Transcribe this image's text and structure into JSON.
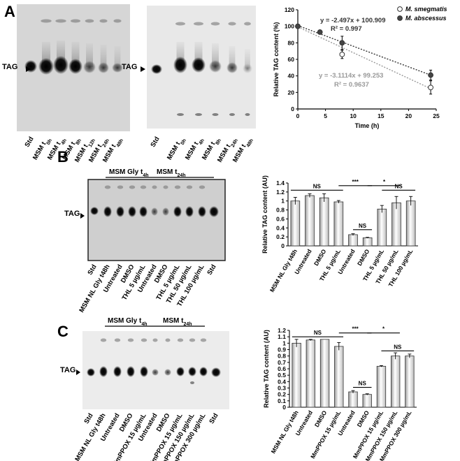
{
  "panels": {
    "A": "A",
    "B": "B",
    "C": "C"
  },
  "tag_label": "TAG",
  "sub": {
    "tgly4h": "4h",
    "tgly48h": "48h"
  },
  "panelA": {
    "tlc1": {
      "lanes": [
        {
          "main": "Std",
          "sub": ""
        },
        {
          "main": "MSM t",
          "sub": "0h"
        },
        {
          "main": "MSM t",
          "sub": "4h"
        },
        {
          "main": "MSM t",
          "sub": "8h"
        },
        {
          "main": "MSM t",
          "sub": "12h"
        },
        {
          "main": "MSM t",
          "sub": "24h"
        },
        {
          "main": "MSM t",
          "sub": "48h"
        }
      ]
    },
    "tlc2": {
      "lanes": [
        {
          "main": "Std",
          "sub": ""
        },
        {
          "main": "MSM t",
          "sub": "0h"
        },
        {
          "main": "MSM t",
          "sub": "4h"
        },
        {
          "main": "MSM t",
          "sub": "8h"
        },
        {
          "main": "MSM t",
          "sub": "24h"
        },
        {
          "main": "MSM t",
          "sub": "48h"
        }
      ]
    }
  },
  "panelB": {
    "group1": {
      "main": "MSM Gly t",
      "sub": "4h"
    },
    "group2": {
      "main": "MSM t",
      "sub": "24h"
    },
    "lanes": [
      "Std",
      "MSM NL Gly t48h",
      "Untreated",
      "DMSO",
      "THL 5 µg/mL",
      "Untreated",
      "DMSO",
      "THL 5 µg/mL",
      "THL 50 µg/mL",
      "THL 100 µg/mL",
      "Std"
    ]
  },
  "panelC": {
    "group1": {
      "main": "MSM Gly t",
      "sub": "4h"
    },
    "group2": {
      "main": "MSM t",
      "sub": "24h"
    },
    "lanes": [
      "Std",
      "MSM NL Gly t48h",
      "Untreated",
      "DMSO",
      "MmPPOX 15 µg/mL",
      "Untreated",
      "DMSO",
      "MmPPOX 15 µg/mL",
      "MmPPOX 150 µg/mL",
      "MmPPOX 300 µg/mL",
      "Std"
    ]
  },
  "chart_data": [
    {
      "type": "scatter",
      "xlabel": "Time (h)",
      "ylabel": "Relative TAG content (%)",
      "xlim": [
        0,
        25
      ],
      "ylim": [
        0,
        120
      ],
      "xticks": [
        "0",
        "5",
        "10",
        "15",
        "20",
        "25"
      ],
      "yticks": [
        "0",
        "20",
        "40",
        "60",
        "80",
        "100",
        "120"
      ],
      "legend_position": "top-right",
      "series": [
        {
          "name": "M. smegmatis",
          "color": "#ffffff",
          "trend_color": "#999999",
          "x": [
            0,
            8,
            24
          ],
          "y": [
            100,
            66,
            26
          ],
          "err": [
            0,
            5,
            8
          ],
          "equation": "y = -3.1114x + 99.253",
          "r2": "R² = 0.9637",
          "slope": -3.1114,
          "intercept": 99.253
        },
        {
          "name": "M. abscessus",
          "color": "#444444",
          "trend_color": "#333333",
          "x": [
            0,
            4,
            8,
            24
          ],
          "y": [
            100,
            93,
            80,
            41
          ],
          "err": [
            0,
            2,
            8,
            6
          ],
          "equation": "y = -2.497x + 100.909",
          "r2": "R² = 0.997",
          "slope": -2.497,
          "intercept": 100.909
        }
      ]
    },
    {
      "type": "bar",
      "ylabel": "Relative TAG content (AU)",
      "ylim": [
        0,
        1.4
      ],
      "yticks": [
        "0",
        "0.2",
        "0.4",
        "0.6",
        "0.8",
        "1",
        "1.2",
        "1.4"
      ],
      "categories": [
        "MSM NL Gly t48h",
        "Untreated",
        "DMSO",
        "THL 5 µg/mL",
        "Untreated",
        "DMSO",
        "THL 5 µg/mL",
        "THL 50 µg/mL",
        "THL 100 µg/mL"
      ],
      "values": [
        1.0,
        1.12,
        1.07,
        0.98,
        0.25,
        0.18,
        0.82,
        0.96,
        1.0
      ],
      "errors": [
        0.08,
        0.04,
        0.09,
        0.03,
        0.02,
        0.01,
        0.08,
        0.14,
        0.1
      ],
      "significance": [
        {
          "label": "NS",
          "from": 0,
          "to": 3,
          "y": 1.24
        },
        {
          "label": "***",
          "from": 3,
          "to": 5,
          "y": 1.34
        },
        {
          "label": "NS",
          "from": 4,
          "to": 5,
          "y": 0.36
        },
        {
          "label": "*",
          "from": 5,
          "to": 7,
          "y": 1.34
        },
        {
          "label": "NS",
          "from": 6,
          "to": 8,
          "y": 1.24
        }
      ]
    },
    {
      "type": "bar",
      "ylabel": "Relative TAG content (AU)",
      "ylim": [
        0,
        1.2
      ],
      "yticks": [
        "0",
        "0.1",
        "0.2",
        "0.3",
        "0.4",
        "0.5",
        "0.6",
        "0.7",
        "0.8",
        "0.9",
        "1",
        "1.1",
        "1.2"
      ],
      "categories": [
        "MSM NL Gly t48h",
        "Untreated",
        "DMSO",
        "MmPPOX 15 µg/mL",
        "Untreated",
        "DMSO",
        "MmPPOX 15 µg/mL",
        "MmPPOX 150 µg/mL",
        "MmPPOX 300 µg/mL"
      ],
      "values": [
        1.0,
        1.05,
        1.06,
        0.95,
        0.24,
        0.2,
        0.64,
        0.8,
        0.8
      ],
      "errors": [
        0.06,
        0.01,
        0.0,
        0.06,
        0.02,
        0.01,
        0.01,
        0.05,
        0.03
      ],
      "significance": [
        {
          "label": "NS",
          "from": 0,
          "to": 3,
          "y": 1.1
        },
        {
          "label": "***",
          "from": 3,
          "to": 5,
          "y": 1.16
        },
        {
          "label": "NS",
          "from": 4,
          "to": 5,
          "y": 0.31
        },
        {
          "label": "*",
          "from": 5,
          "to": 7,
          "y": 1.16
        },
        {
          "label": "NS",
          "from": 6,
          "to": 8,
          "y": 0.88
        }
      ]
    }
  ]
}
